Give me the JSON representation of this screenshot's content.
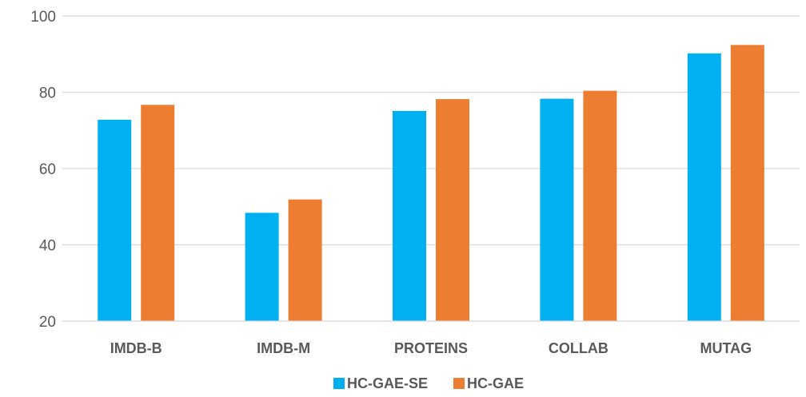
{
  "chart_data": {
    "type": "bar",
    "categories": [
      "IMDB-B",
      "IMDB-M",
      "PROTEINS",
      "COLLAB",
      "MUTAG"
    ],
    "series": [
      {
        "name": "HC-GAE-SE",
        "values": [
          72.8,
          48.4,
          75.1,
          78.3,
          90.2
        ],
        "color": "#00B0F0"
      },
      {
        "name": "HC-GAE",
        "values": [
          76.7,
          51.9,
          78.2,
          80.4,
          92.4
        ],
        "color": "#ED7D31"
      }
    ],
    "ylim": [
      20,
      100
    ],
    "yticks": [
      20,
      40,
      60,
      80,
      100
    ],
    "grid": true,
    "legend_position": "bottom-center",
    "gridline_color": "#D9D9D9"
  }
}
